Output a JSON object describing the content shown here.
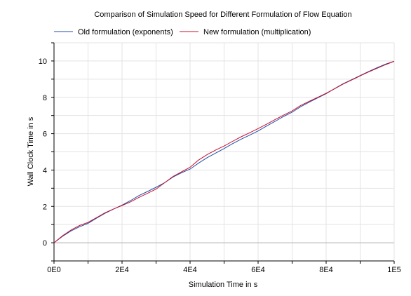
{
  "chart_data": {
    "type": "line",
    "title": "Comparison of Simulation Speed for Different Formulation of Flow Equation",
    "xlabel": "Simulation Time in s",
    "ylabel": "Wall Clock Time in s",
    "xlim": [
      0,
      100000
    ],
    "ylim": [
      -1,
      11
    ],
    "x_ticks": [
      {
        "value": 0,
        "label": "0E0"
      },
      {
        "value": 20000,
        "label": "2E4"
      },
      {
        "value": 40000,
        "label": "4E4"
      },
      {
        "value": 60000,
        "label": "6E4"
      },
      {
        "value": 80000,
        "label": "8E4"
      },
      {
        "value": 100000,
        "label": "1E5"
      }
    ],
    "y_ticks": [
      {
        "value": 0,
        "label": "0"
      },
      {
        "value": 2,
        "label": "2"
      },
      {
        "value": 4,
        "label": "4"
      },
      {
        "value": 6,
        "label": "6"
      },
      {
        "value": 8,
        "label": "8"
      },
      {
        "value": 10,
        "label": "10"
      }
    ],
    "grid": true,
    "legend_position": "top",
    "series": [
      {
        "name": "Old formulation (exponents)",
        "color": "#1f4fa8",
        "x": [
          0,
          2500,
          5000,
          7500,
          10000,
          12500,
          15000,
          17500,
          20000,
          22500,
          25000,
          27500,
          30000,
          32500,
          35000,
          37500,
          40000,
          42500,
          45000,
          47500,
          50000,
          52500,
          55000,
          57500,
          60000,
          62500,
          65000,
          67500,
          70000,
          72500,
          75000,
          77500,
          80000,
          82500,
          85000,
          87500,
          90000,
          92500,
          95000,
          97500,
          100000
        ],
        "y": [
          0,
          0.35,
          0.65,
          0.88,
          1.07,
          1.35,
          1.62,
          1.85,
          2.07,
          2.32,
          2.6,
          2.82,
          3.05,
          3.3,
          3.62,
          3.85,
          4.05,
          4.38,
          4.68,
          4.93,
          5.18,
          5.45,
          5.7,
          5.92,
          6.15,
          6.42,
          6.68,
          6.95,
          7.18,
          7.48,
          7.73,
          7.97,
          8.2,
          8.48,
          8.75,
          8.97,
          9.2,
          9.42,
          9.63,
          9.83,
          9.98
        ]
      },
      {
        "name": "New formulation (multiplication)",
        "color": "#c8102e",
        "x": [
          0,
          2500,
          5000,
          7500,
          10000,
          12500,
          15000,
          17500,
          20000,
          22500,
          25000,
          27500,
          30000,
          32500,
          35000,
          37500,
          40000,
          42500,
          45000,
          47500,
          50000,
          52500,
          55000,
          57500,
          60000,
          62500,
          65000,
          67500,
          70000,
          72500,
          75000,
          77500,
          80000,
          82500,
          85000,
          87500,
          90000,
          92500,
          95000,
          97500,
          100000
        ],
        "y": [
          0,
          0.38,
          0.7,
          0.95,
          1.12,
          1.38,
          1.65,
          1.86,
          2.05,
          2.25,
          2.5,
          2.72,
          2.95,
          3.3,
          3.65,
          3.9,
          4.15,
          4.55,
          4.85,
          5.1,
          5.32,
          5.58,
          5.83,
          6.05,
          6.28,
          6.52,
          6.78,
          7.02,
          7.25,
          7.55,
          7.78,
          8.0,
          8.22,
          8.47,
          8.73,
          8.95,
          9.18,
          9.4,
          9.6,
          9.8,
          9.98
        ]
      }
    ]
  }
}
